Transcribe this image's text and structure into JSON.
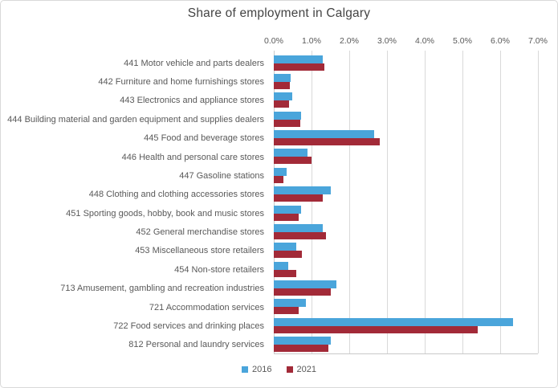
{
  "chart_data": {
    "type": "bar",
    "orientation": "horizontal",
    "title": "Share of employment in Calgary",
    "categories": [
      "441 Motor vehicle and parts dealers",
      "442 Furniture and home furnishings stores",
      "443 Electronics and appliance stores",
      "444 Building material and garden equipment and supplies dealers",
      "445 Food and beverage stores",
      "446 Health and personal care stores",
      "447 Gasoline stations",
      "448 Clothing and clothing accessories stores",
      "451 Sporting goods, hobby, book and music stores",
      "452 General merchandise stores",
      "453 Miscellaneous store retailers",
      "454 Non-store retailers",
      "713 Amusement, gambling and recreation industries",
      "721 Accommodation services",
      "722 Food services and drinking places",
      "812 Personal and laundry services"
    ],
    "series": [
      {
        "name": "2016",
        "color": "#4aa5db",
        "values": [
          1.3,
          0.45,
          0.48,
          0.73,
          2.65,
          0.9,
          0.35,
          1.5,
          0.73,
          1.3,
          0.6,
          0.38,
          1.65,
          0.85,
          6.35,
          1.5
        ]
      },
      {
        "name": "2021",
        "color": "#a22a38",
        "values": [
          1.35,
          0.42,
          0.4,
          0.7,
          2.8,
          1.0,
          0.25,
          1.3,
          0.65,
          1.38,
          0.75,
          0.6,
          1.5,
          0.65,
          5.4,
          1.45
        ]
      }
    ],
    "x_axis": {
      "min": 0,
      "max": 7,
      "tick_step": 1,
      "position": "top",
      "tick_labels": [
        "0.0%",
        "1.0%",
        "2.0%",
        "3.0%",
        "4.0%",
        "5.0%",
        "6.0%",
        "7.0%"
      ]
    },
    "grid": true,
    "legend_position": "bottom"
  },
  "colors": {
    "series_2016": "#4aa5db",
    "series_2021": "#a22a38",
    "gridline": "#d9d9d9",
    "axis_line": "#c9c9c9",
    "text": "#595959",
    "title_text": "#444444",
    "chart_border": "#d9d9d9",
    "background": "#ffffff"
  }
}
